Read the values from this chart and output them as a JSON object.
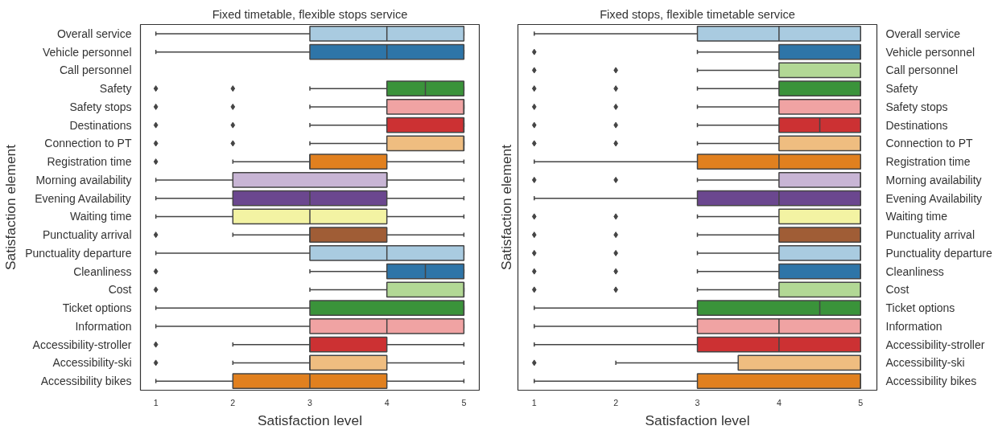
{
  "chart_data": [
    {
      "type": "box",
      "orientation": "horizontal",
      "title": "Fixed timetable, flexible stops service",
      "xlabel": "Satisfaction level",
      "ylabel": "Satisfaction element",
      "xlim": [
        0.8,
        5.2
      ],
      "xticks": [
        1,
        2,
        3,
        4,
        5
      ],
      "marker": "diamond",
      "categories": [
        "Overall service",
        "Vehicle personnel",
        "Call personnel",
        "Safety",
        "Safety stops",
        "Destinations",
        "Connection to PT",
        "Registration time",
        "Morning availability",
        "Evening Availability",
        "Waiting time",
        "Punctuality arrival",
        "Punctuality departure",
        "Cleanliness",
        "Cost",
        "Ticket options",
        "Information",
        "Accessibility-stroller",
        "Accessibility-ski",
        "Accessibility bikes"
      ],
      "colors": [
        "#a9cbe0",
        "#2e75a8",
        "#b2d895",
        "#3a933a",
        "#f0a3a3",
        "#cc3133",
        "#efbd80",
        "#e1801f",
        "#c8b5d5",
        "#6b478f",
        "#f3f3a3",
        "#a05d36",
        "#a9cbe0",
        "#2e75a8",
        "#b2d895",
        "#3a933a",
        "#f0a3a3",
        "#cc3133",
        "#efbd80",
        "#e1801f"
      ],
      "boxes": [
        {
          "low": 1,
          "q1": 3,
          "median": 4,
          "q3": 5,
          "high": 5
        },
        {
          "low": 1,
          "q1": 3,
          "median": 4,
          "q3": 5,
          "high": 5
        },
        null,
        {
          "low": 3,
          "q1": 4,
          "median": 4.5,
          "q3": 5,
          "high": 5,
          "outliers": [
            1,
            2
          ]
        },
        {
          "low": 3,
          "q1": 4,
          "median": 5,
          "q3": 5,
          "high": 5,
          "outliers": [
            1,
            2
          ]
        },
        {
          "low": 3,
          "q1": 4,
          "median": 5,
          "q3": 5,
          "high": 5,
          "outliers": [
            1,
            2
          ]
        },
        {
          "low": 3,
          "q1": 4,
          "median": 5,
          "q3": 5,
          "high": 5,
          "outliers": [
            1,
            2
          ]
        },
        {
          "low": 2,
          "q1": 3,
          "median": 3,
          "q3": 4,
          "high": 5,
          "outliers": [
            1
          ]
        },
        {
          "low": 1,
          "q1": 2,
          "median": 4,
          "q3": 4,
          "high": 5
        },
        {
          "low": 1,
          "q1": 2,
          "median": 3,
          "q3": 4,
          "high": 5
        },
        {
          "low": 1,
          "q1": 2,
          "median": 3,
          "q3": 4,
          "high": 5
        },
        {
          "low": 2,
          "q1": 3,
          "median": 3,
          "q3": 4,
          "high": 5,
          "outliers": [
            1
          ]
        },
        {
          "low": 1,
          "q1": 3,
          "median": 4,
          "q3": 5,
          "high": 5
        },
        {
          "low": 3,
          "q1": 4,
          "median": 4.5,
          "q3": 5,
          "high": 5,
          "outliers": [
            1
          ]
        },
        {
          "low": 3,
          "q1": 4,
          "median": 5,
          "q3": 5,
          "high": 5,
          "outliers": [
            1
          ]
        },
        {
          "low": 1,
          "q1": 3,
          "median": 5,
          "q3": 5,
          "high": 5
        },
        {
          "low": 1,
          "q1": 3,
          "median": 4,
          "q3": 5,
          "high": 5
        },
        {
          "low": 2,
          "q1": 3,
          "median": 3,
          "q3": 4,
          "high": 5,
          "outliers": [
            1
          ]
        },
        {
          "low": 2,
          "q1": 3,
          "median": 3,
          "q3": 4,
          "high": 5,
          "outliers": [
            1
          ]
        },
        {
          "low": 1,
          "q1": 2,
          "median": 3,
          "q3": 4,
          "high": 5
        }
      ]
    },
    {
      "type": "box",
      "orientation": "horizontal",
      "title": "Fixed stops, flexible timetable service",
      "xlabel": "Satisfaction level",
      "ylabel": "Satisfaction element",
      "xlim": [
        0.8,
        5.2
      ],
      "xticks": [
        1,
        2,
        3,
        4,
        5
      ],
      "marker": "diamond",
      "categories": [
        "Overall service",
        "Vehicle personnel",
        "Call personnel",
        "Safety",
        "Safety stops",
        "Destinations",
        "Connection to PT",
        "Registration time",
        "Morning availability",
        "Evening Availability",
        "Waiting time",
        "Punctuality arrival",
        "Punctuality departure",
        "Cleanliness",
        "Cost",
        "Ticket options",
        "Information",
        "Accessibility-stroller",
        "Accessibility-ski",
        "Accessibility bikes"
      ],
      "colors": [
        "#a9cbe0",
        "#2e75a8",
        "#b2d895",
        "#3a933a",
        "#f0a3a3",
        "#cc3133",
        "#efbd80",
        "#e1801f",
        "#c8b5d5",
        "#6b478f",
        "#f3f3a3",
        "#a05d36",
        "#a9cbe0",
        "#2e75a8",
        "#b2d895",
        "#3a933a",
        "#f0a3a3",
        "#cc3133",
        "#efbd80",
        "#e1801f"
      ],
      "boxes": [
        {
          "low": 1,
          "q1": 3,
          "median": 4,
          "q3": 5,
          "high": 5
        },
        {
          "low": 3,
          "q1": 4,
          "median": 5,
          "q3": 5,
          "high": 5,
          "outliers": [
            1
          ]
        },
        {
          "low": 3,
          "q1": 4,
          "median": 5,
          "q3": 5,
          "high": 5,
          "outliers": [
            1,
            2
          ]
        },
        {
          "low": 3,
          "q1": 4,
          "median": 5,
          "q3": 5,
          "high": 5,
          "outliers": [
            1,
            2
          ]
        },
        {
          "low": 3,
          "q1": 4,
          "median": 5,
          "q3": 5,
          "high": 5,
          "outliers": [
            1,
            2
          ]
        },
        {
          "low": 3,
          "q1": 4,
          "median": 4.5,
          "q3": 5,
          "high": 5,
          "outliers": [
            1,
            2
          ]
        },
        {
          "low": 3,
          "q1": 4,
          "median": 5,
          "q3": 5,
          "high": 5,
          "outliers": [
            1,
            2
          ]
        },
        {
          "low": 1,
          "q1": 3,
          "median": 4,
          "q3": 5,
          "high": 5
        },
        {
          "low": 3,
          "q1": 4,
          "median": 5,
          "q3": 5,
          "high": 5,
          "outliers": [
            1,
            2
          ]
        },
        {
          "low": 1,
          "q1": 3,
          "median": 4,
          "q3": 5,
          "high": 5
        },
        {
          "low": 3,
          "q1": 4,
          "median": 5,
          "q3": 5,
          "high": 5,
          "outliers": [
            1,
            2
          ]
        },
        {
          "low": 3,
          "q1": 4,
          "median": 5,
          "q3": 5,
          "high": 5,
          "outliers": [
            1,
            2
          ]
        },
        {
          "low": 3,
          "q1": 4,
          "median": 5,
          "q3": 5,
          "high": 5,
          "outliers": [
            1,
            2
          ]
        },
        {
          "low": 3,
          "q1": 4,
          "median": 5,
          "q3": 5,
          "high": 5,
          "outliers": [
            1,
            2
          ]
        },
        {
          "low": 3,
          "q1": 4,
          "median": 5,
          "q3": 5,
          "high": 5,
          "outliers": [
            1,
            2
          ]
        },
        {
          "low": 1,
          "q1": 3,
          "median": 4.5,
          "q3": 5,
          "high": 5
        },
        {
          "low": 1,
          "q1": 3,
          "median": 4,
          "q3": 5,
          "high": 5
        },
        {
          "low": 1,
          "q1": 3,
          "median": 4,
          "q3": 5,
          "high": 5
        },
        {
          "low": 2,
          "q1": 3.5,
          "median": 5,
          "q3": 5,
          "high": 5,
          "outliers": [
            1
          ]
        },
        {
          "low": 1,
          "q1": 3,
          "median": 5,
          "q3": 5,
          "high": 5
        }
      ]
    }
  ]
}
